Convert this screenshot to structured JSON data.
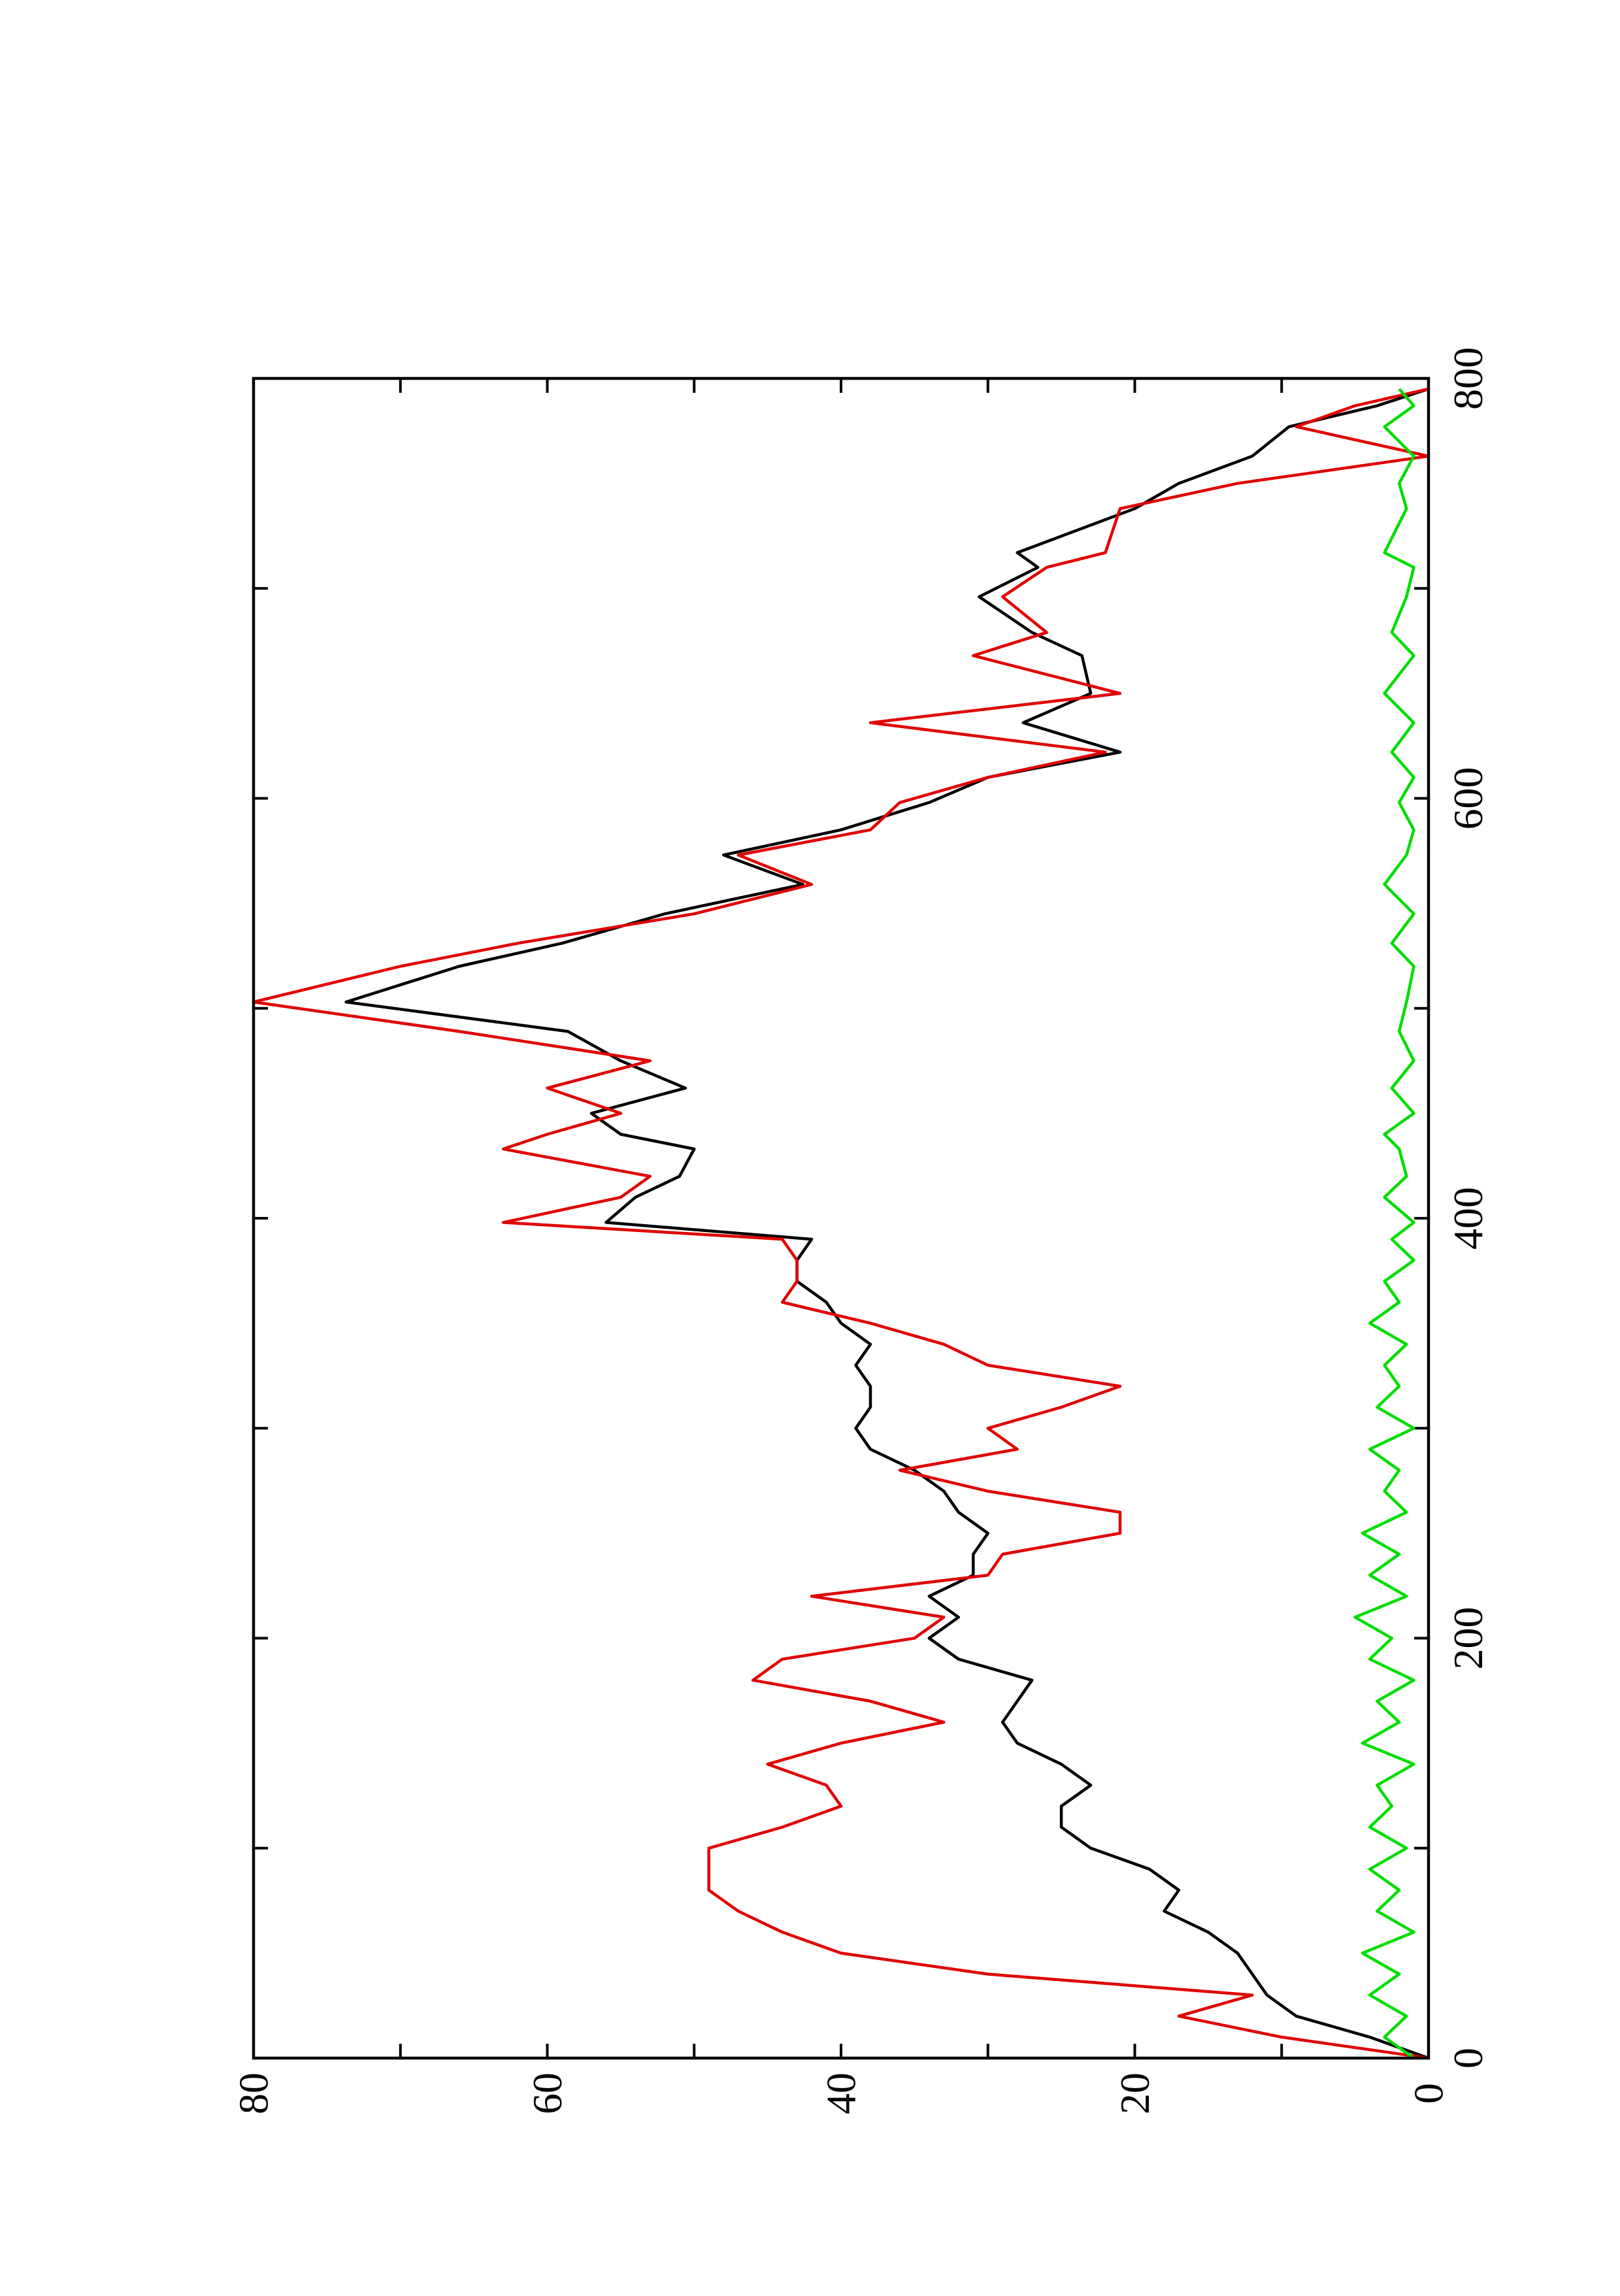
{
  "chart_data": {
    "type": "line",
    "xlim": [
      0,
      800
    ],
    "xticks": [
      0,
      200,
      400,
      600,
      800
    ],
    "xminorticks": [
      100,
      300,
      500,
      700
    ],
    "ylim": [
      0,
      80
    ],
    "yticks": [
      0,
      20,
      40,
      60,
      80
    ],
    "yminorticks": [
      10,
      30,
      50,
      70
    ],
    "x": [
      0,
      10,
      20,
      30,
      40,
      50,
      60,
      70,
      80,
      90,
      100,
      110,
      120,
      130,
      140,
      150,
      160,
      170,
      180,
      190,
      200,
      210,
      220,
      230,
      240,
      250,
      260,
      270,
      280,
      290,
      300,
      310,
      320,
      330,
      340,
      350,
      360,
      370,
      380,
      390,
      398,
      410,
      420,
      433,
      440,
      450,
      462,
      475,
      489,
      503,
      520,
      531,
      545,
      559,
      573,
      585,
      598,
      610,
      622,
      636,
      650,
      668,
      679,
      696,
      710,
      717,
      738,
      750,
      763,
      777,
      787,
      795
    ],
    "series": [
      {
        "name": "black",
        "color": "#000000",
        "values": [
          0,
          4,
          9,
          11,
          12,
          13,
          15,
          18,
          17,
          19,
          23,
          25,
          25,
          23,
          25,
          28,
          29,
          28,
          27,
          32,
          34,
          32,
          34,
          31,
          31,
          30,
          32,
          33,
          35,
          38,
          39,
          38,
          38,
          39,
          38,
          40,
          41,
          43,
          43,
          42,
          56,
          54,
          51,
          50,
          55,
          57,
          50.6,
          55,
          58.6,
          73.7,
          66,
          59,
          52,
          42.6,
          48,
          40,
          34,
          30,
          21,
          27.6,
          23,
          23.6,
          27,
          30.6,
          26.6,
          28,
          20,
          17,
          12,
          9.5,
          3.5,
          0
        ]
      },
      {
        "name": "red",
        "color": "#e00000",
        "values": [
          0,
          10,
          17,
          12,
          30,
          40,
          44,
          47,
          49,
          49,
          49,
          44,
          40,
          41,
          45,
          40,
          33,
          38,
          46,
          44,
          35,
          33,
          42,
          30,
          29,
          21,
          21,
          30,
          36,
          28,
          30,
          25,
          21,
          30,
          33,
          38,
          44,
          43,
          43,
          44,
          63,
          55,
          53,
          63,
          60,
          55,
          60,
          53,
          66,
          80,
          70,
          62,
          50,
          42,
          47,
          38,
          36,
          30,
          22,
          38,
          21,
          31,
          26,
          29,
          26,
          22,
          21,
          13,
          0,
          9,
          5,
          0
        ]
      },
      {
        "name": "green",
        "color": "#00dd00",
        "values": [
          1,
          3,
          1.5,
          4,
          2,
          4.5,
          1,
          3.5,
          2,
          4,
          1.5,
          4,
          2.5,
          3.5,
          1,
          4.5,
          2,
          3.5,
          1,
          4,
          2.5,
          5,
          1.5,
          4,
          2,
          4.5,
          1.5,
          3,
          2,
          4,
          1,
          3.5,
          2,
          3,
          1.5,
          4,
          2,
          3,
          1,
          2.5,
          1,
          3,
          1.5,
          2,
          3,
          1,
          2.5,
          1,
          2,
          1.5,
          1,
          2.5,
          1,
          3,
          1.5,
          1,
          2,
          1,
          2.5,
          1,
          3,
          1,
          2.5,
          1.5,
          1,
          3,
          1.5,
          2,
          1,
          3,
          1,
          2
        ]
      }
    ]
  }
}
